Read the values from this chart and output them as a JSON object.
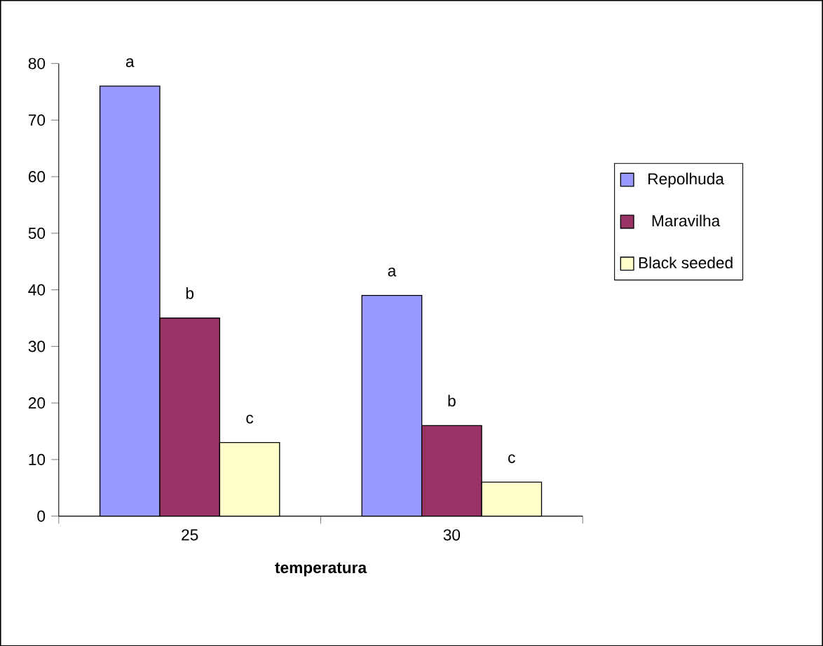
{
  "chart_data": {
    "type": "bar",
    "xlabel": "temperatura",
    "categories": [
      "25",
      "30"
    ],
    "series": [
      {
        "name": "Repolhuda",
        "color": "#9999ff",
        "values": [
          76,
          39
        ]
      },
      {
        "name": "Maravilha",
        "color": "#993366",
        "values": [
          35,
          16
        ]
      },
      {
        "name": "Black seeded",
        "color": "#ffffcc",
        "values": [
          13,
          6
        ]
      }
    ],
    "ylim": [
      0,
      80
    ],
    "yticks": [
      0,
      10,
      20,
      30,
      40,
      50,
      60,
      70,
      80
    ],
    "grid": false,
    "legend": "right",
    "annotations": [
      "a",
      "b",
      "c",
      "a",
      "b",
      "c"
    ]
  }
}
